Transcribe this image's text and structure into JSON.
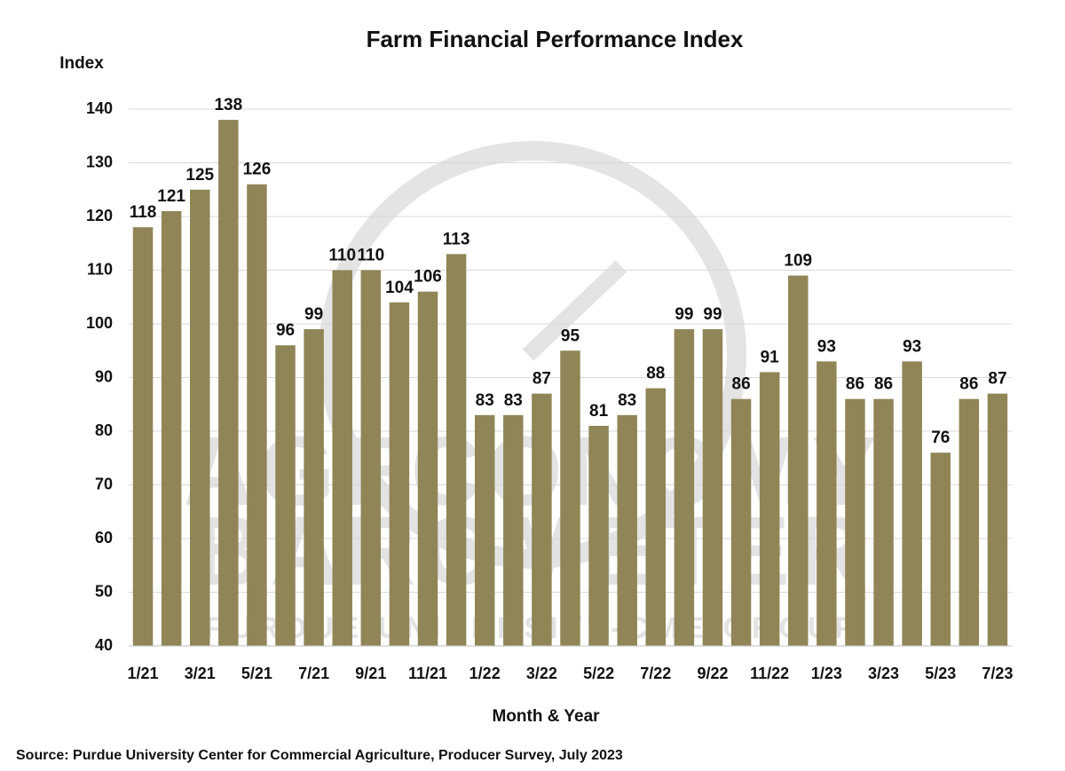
{
  "chart_data": {
    "type": "bar",
    "title": "Farm Financial Performance Index",
    "y_label": "Index",
    "x_label": "Month & Year",
    "source": "Source: Purdue University Center for Commercial Agriculture, Producer Survey, July 2023",
    "watermark": [
      "AGECONOMY",
      "BAROMETER",
      "PURDUE UNIVERSITY-CME GROUP"
    ],
    "categories": [
      "1/21",
      null,
      "3/21",
      null,
      "5/21",
      null,
      "7/21",
      null,
      "9/21",
      null,
      "11/21",
      null,
      "1/22",
      null,
      "3/22",
      null,
      "5/22",
      null,
      "7/22",
      null,
      "9/22",
      null,
      "11/22",
      null,
      "1/23",
      null,
      "3/23",
      null,
      "5/23",
      null,
      "7/23"
    ],
    "values": [
      118,
      121,
      125,
      138,
      126,
      96,
      99,
      110,
      110,
      104,
      106,
      113,
      83,
      83,
      87,
      95,
      81,
      83,
      88,
      99,
      99,
      86,
      91,
      109,
      93,
      86,
      86,
      93,
      76,
      86,
      87
    ],
    "color": "#8f8556",
    "ylim": [
      40,
      140
    ],
    "yticks": [
      40,
      50,
      60,
      70,
      80,
      90,
      100,
      110,
      120,
      130,
      140
    ],
    "grid": true
  }
}
